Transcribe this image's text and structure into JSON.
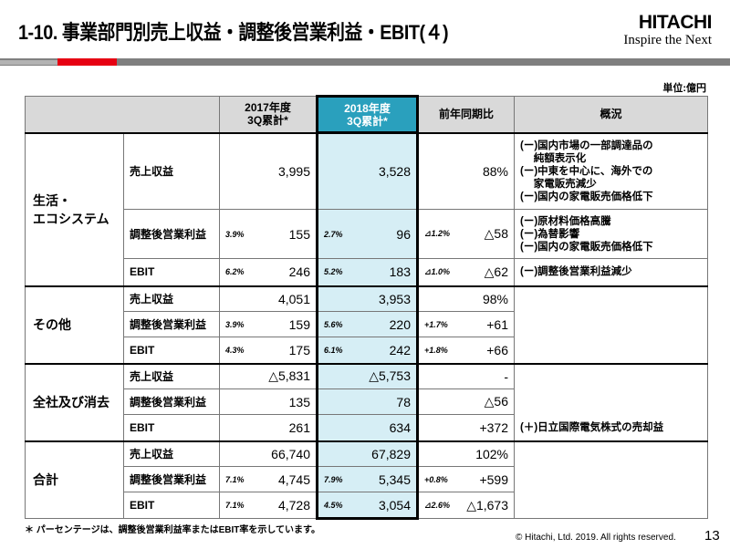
{
  "header": {
    "title": "1-10. 事業部門別売上収益・調整後営業利益・EBIT(４)",
    "logo_brand": "HITACHI",
    "logo_tagline": "Inspire the Next",
    "unit": "単位:億円"
  },
  "colors": {
    "accent_red": "#e60012",
    "highlight_header": "#2aa0bd",
    "highlight_cell": "#d6eef5"
  },
  "table": {
    "columns": [
      "",
      "",
      "2017年度\n3Q累計*",
      "2018年度\n3Q累計*",
      "前年同期比",
      "概況"
    ],
    "sections": [
      {
        "name": "生活・\nエコシステム",
        "rows": [
          {
            "item": "売上収益",
            "y2017": {
              "pct": "",
              "val": "3,995"
            },
            "y2018": {
              "pct": "",
              "val": "3,528"
            },
            "yoy": {
              "pct": "",
              "val": "88%"
            }
          },
          {
            "item": "調整後営業利益",
            "y2017": {
              "pct": "3.9%",
              "val": "155"
            },
            "y2018": {
              "pct": "2.7%",
              "val": "96"
            },
            "yoy": {
              "pct": "⊿1.2%",
              "val": "△58"
            }
          },
          {
            "item": "EBIT",
            "y2017": {
              "pct": "6.2%",
              "val": "246"
            },
            "y2018": {
              "pct": "5.2%",
              "val": "183"
            },
            "yoy": {
              "pct": "⊿1.0%",
              "val": "△62"
            }
          }
        ],
        "overview": [
          {
            "rowspan": 1,
            "align": "middle",
            "lines": [
              "(ー)国内市場の一部調達品の",
              "　  純額表示化",
              "(ー)中東を中心に、海外での",
              "　  家電販売減少",
              "(ー)国内の家電販売価格低下"
            ]
          },
          {
            "rowspan": 1,
            "align": "middle",
            "lines": [
              "(ー)原材料価格高騰",
              "(ー)為替影響",
              "(ー)国内の家電販売価格低下"
            ]
          },
          {
            "rowspan": 1,
            "align": "middle",
            "lines": [
              "(ー)調整後営業利益減少"
            ]
          }
        ]
      },
      {
        "name": "その他",
        "rows": [
          {
            "item": "売上収益",
            "y2017": {
              "pct": "",
              "val": "4,051"
            },
            "y2018": {
              "pct": "",
              "val": "3,953"
            },
            "yoy": {
              "pct": "",
              "val": "98%"
            }
          },
          {
            "item": "調整後営業利益",
            "y2017": {
              "pct": "3.9%",
              "val": "159"
            },
            "y2018": {
              "pct": "5.6%",
              "val": "220"
            },
            "yoy": {
              "pct": "+1.7%",
              "val": "+61"
            }
          },
          {
            "item": "EBIT",
            "y2017": {
              "pct": "4.3%",
              "val": "175"
            },
            "y2018": {
              "pct": "6.1%",
              "val": "242"
            },
            "yoy": {
              "pct": "+1.8%",
              "val": "+66"
            }
          }
        ],
        "overview": [
          {
            "rowspan": 3,
            "align": "middle",
            "lines": []
          }
        ]
      },
      {
        "name": "全社及び消去",
        "rows": [
          {
            "item": "売上収益",
            "y2017": {
              "pct": "",
              "val": "△5,831"
            },
            "y2018": {
              "pct": "",
              "val": "△5,753"
            },
            "yoy": {
              "pct": "",
              "val": "-"
            }
          },
          {
            "item": "調整後営業利益",
            "y2017": {
              "pct": "",
              "val": "135"
            },
            "y2018": {
              "pct": "",
              "val": "78"
            },
            "yoy": {
              "pct": "",
              "val": "△56"
            }
          },
          {
            "item": "EBIT",
            "y2017": {
              "pct": "",
              "val": "261"
            },
            "y2018": {
              "pct": "",
              "val": "634"
            },
            "yoy": {
              "pct": "",
              "val": "+372"
            }
          }
        ],
        "overview": [
          {
            "rowspan": 3,
            "align": "bottom",
            "lines": [
              "(＋)日立国際電気株式の売却益"
            ]
          }
        ]
      },
      {
        "name": "合計",
        "rows": [
          {
            "item": "売上収益",
            "y2017": {
              "pct": "",
              "val": "66,740"
            },
            "y2018": {
              "pct": "",
              "val": "67,829"
            },
            "yoy": {
              "pct": "",
              "val": "102%"
            }
          },
          {
            "item": "調整後営業利益",
            "y2017": {
              "pct": "7.1%",
              "val": "4,745"
            },
            "y2018": {
              "pct": "7.9%",
              "val": "5,345"
            },
            "yoy": {
              "pct": "+0.8%",
              "val": "+599"
            }
          },
          {
            "item": "EBIT",
            "y2017": {
              "pct": "7.1%",
              "val": "4,728"
            },
            "y2018": {
              "pct": "4.5%",
              "val": "3,054"
            },
            "yoy": {
              "pct": "⊿2.6%",
              "val": "△1,673"
            }
          }
        ],
        "overview": [
          {
            "rowspan": 3,
            "align": "middle",
            "lines": []
          }
        ]
      }
    ]
  },
  "footer": {
    "note": "＊ パーセンテージは、調整後営業利益率またはEBIT率を示しています。",
    "copyright": "© Hitachi, Ltd. 2019. All rights reserved.",
    "page": "13"
  }
}
